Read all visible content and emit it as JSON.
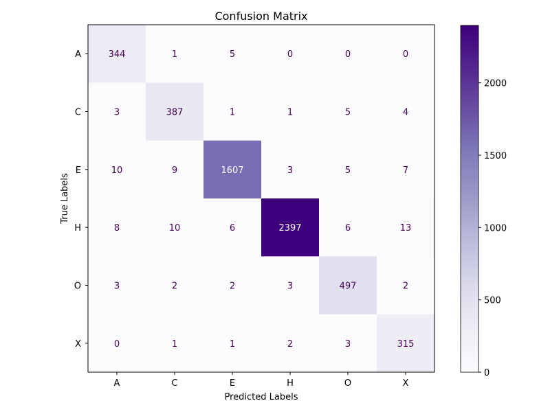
{
  "chart_data": {
    "type": "heatmap",
    "title": "Confusion Matrix",
    "xlabel": "Predicted Labels",
    "ylabel": "True Labels",
    "x_categories": [
      "A",
      "C",
      "E",
      "H",
      "O",
      "X"
    ],
    "y_categories": [
      "A",
      "C",
      "E",
      "H",
      "O",
      "X"
    ],
    "values": [
      [
        344,
        1,
        5,
        0,
        0,
        0
      ],
      [
        3,
        387,
        1,
        1,
        5,
        4
      ],
      [
        10,
        9,
        1607,
        3,
        5,
        7
      ],
      [
        8,
        10,
        6,
        2397,
        6,
        13
      ],
      [
        3,
        2,
        2,
        3,
        497,
        2
      ],
      [
        0,
        1,
        1,
        2,
        3,
        315
      ]
    ],
    "colormap": "Purples",
    "colorbar": {
      "range": [
        0,
        2397
      ],
      "ticks": [
        0,
        500,
        1000,
        1500,
        2000
      ],
      "tick_labels": [
        "0",
        "500",
        "1000",
        "1500",
        "2000"
      ]
    },
    "annotation_colors": {
      "low": "#440154",
      "high": "#ffffff"
    },
    "grid": false
  }
}
